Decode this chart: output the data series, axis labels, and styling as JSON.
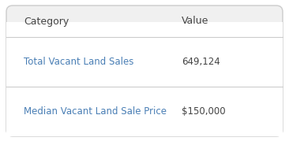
{
  "header_category": "Category",
  "header_value": "Value",
  "rows": [
    {
      "category": "Total Vacant Land Sales",
      "value": "649,124"
    },
    {
      "category": "Median Vacant Land Sale Price",
      "value": "$150,000"
    }
  ],
  "bg_color": "#f0f0f0",
  "white_color": "#ffffff",
  "header_text_color": "#444444",
  "row_text_color": "#4a7fb5",
  "value_text_color": "#444444",
  "divider_color": "#cccccc",
  "border_color": "#cccccc",
  "header_fontsize": 9,
  "row_fontsize": 8.5
}
